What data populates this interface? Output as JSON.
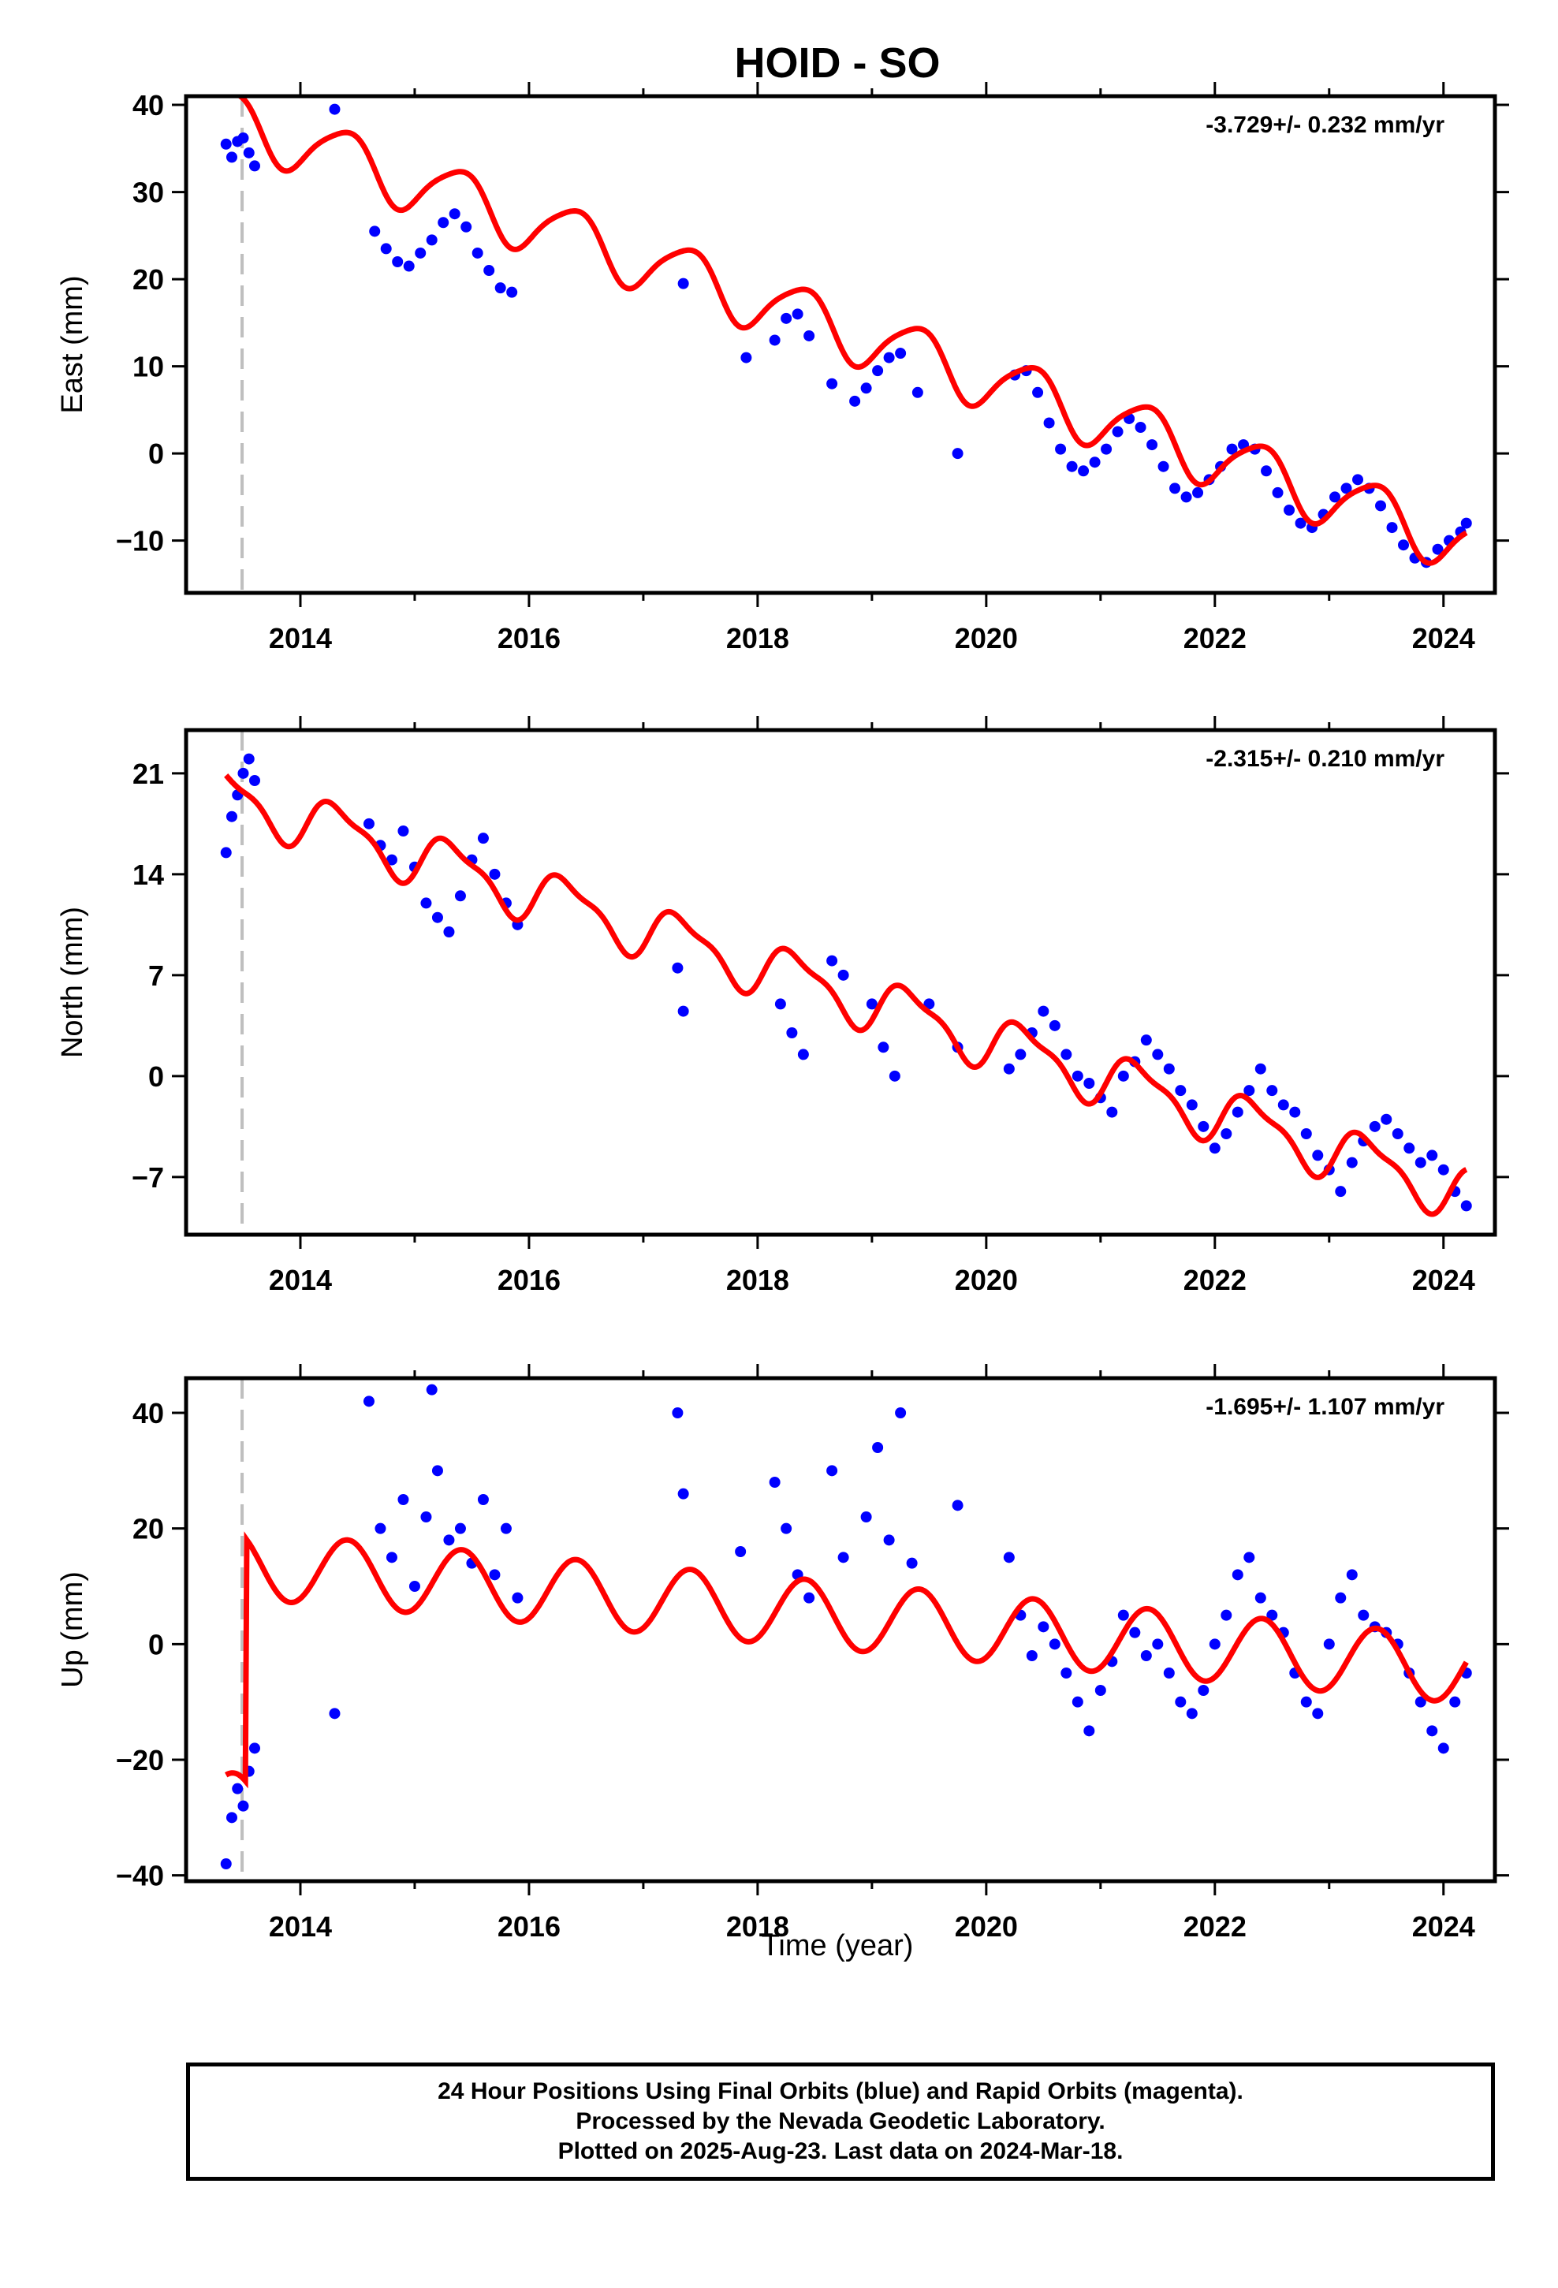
{
  "title": "HOID - SO",
  "xlabel": "Time (year)",
  "x_ticks": [
    "2014",
    "2016",
    "2018",
    "2020",
    "2022",
    "2024"
  ],
  "colors": {
    "final_orbits": "#0000ff",
    "model": "#ff0000",
    "reference_line": "#bfbfbf"
  },
  "chart_data": [
    {
      "type": "scatter",
      "panel": "east",
      "ylabel": "East (mm)",
      "rate": "-3.729+/- 0.232 mm/yr",
      "xlim": [
        2013.0,
        2024.45
      ],
      "ylim": [
        -16,
        41
      ],
      "y_ticks": [
        "40",
        "30",
        "20",
        "10",
        "0",
        "−10"
      ],
      "y_tick_values": [
        40,
        30,
        20,
        10,
        0,
        -10
      ],
      "reference_x": 2013.49,
      "series": [
        {
          "name": "Final Orbits",
          "kind": "points",
          "x": [
            2013.35,
            2013.4,
            2013.45,
            2013.5,
            2013.55,
            2013.6,
            2014.3,
            2014.65,
            2014.75,
            2014.85,
            2014.95,
            2015.05,
            2015.15,
            2015.25,
            2015.35,
            2015.45,
            2015.55,
            2015.65,
            2015.75,
            2015.85,
            2017.35,
            2017.9,
            2018.15,
            2018.25,
            2018.35,
            2018.45,
            2018.65,
            2018.85,
            2018.95,
            2019.05,
            2019.15,
            2019.25,
            2019.4,
            2019.75,
            2020.25,
            2020.35,
            2020.45,
            2020.55,
            2020.65,
            2020.75,
            2020.85,
            2020.95,
            2021.05,
            2021.15,
            2021.25,
            2021.35,
            2021.45,
            2021.55,
            2021.65,
            2021.75,
            2021.85,
            2021.95,
            2022.05,
            2022.15,
            2022.25,
            2022.35,
            2022.45,
            2022.55,
            2022.65,
            2022.75,
            2022.85,
            2022.95,
            2023.05,
            2023.15,
            2023.25,
            2023.35,
            2023.45,
            2023.55,
            2023.65,
            2023.75,
            2023.85,
            2023.95,
            2024.05,
            2024.15,
            2024.2
          ],
          "y": [
            35.5,
            34.0,
            35.8,
            36.2,
            34.5,
            33.0,
            39.5,
            25.5,
            23.5,
            22.0,
            21.5,
            23.0,
            24.5,
            26.5,
            27.5,
            26.0,
            23.0,
            21.0,
            19.0,
            18.5,
            19.5,
            11.0,
            13.0,
            15.5,
            16.0,
            13.5,
            8.0,
            6.0,
            7.5,
            9.5,
            11.0,
            11.5,
            7.0,
            0.0,
            9.0,
            9.5,
            7.0,
            3.5,
            0.5,
            -1.5,
            -2.0,
            -1.0,
            0.5,
            2.5,
            4.0,
            3.0,
            1.0,
            -1.5,
            -4.0,
            -5.0,
            -4.5,
            -3.0,
            -1.5,
            0.5,
            1.0,
            0.5,
            -2.0,
            -4.5,
            -6.5,
            -8.0,
            -8.5,
            -7.0,
            -5.0,
            -4.0,
            -3.0,
            -4.0,
            -6.0,
            -8.5,
            -10.5,
            -12.0,
            -12.5,
            -11.0,
            -10.0,
            -9.0,
            -8.0
          ]
        },
        {
          "name": "Model",
          "kind": "model",
          "intercept": 38.5,
          "trend": -4.5,
          "annual_sin": 2.2,
          "annual_cos": -2.5,
          "semi_sin": 0.4,
          "semi_cos": 0.4,
          "offsets": [],
          "x_range": [
            2013.35,
            2024.2
          ]
        }
      ]
    },
    {
      "type": "scatter",
      "panel": "north",
      "ylabel": "North (mm)",
      "rate": "-2.315+/- 0.210 mm/yr",
      "xlim": [
        2013.0,
        2024.45
      ],
      "ylim": [
        -11,
        24
      ],
      "y_ticks": [
        "21",
        "14",
        "7",
        "0",
        "−7"
      ],
      "y_tick_values": [
        21,
        14,
        7,
        0,
        -7
      ],
      "reference_x": 2013.49,
      "series": [
        {
          "name": "Final Orbits",
          "kind": "points",
          "x": [
            2013.35,
            2013.4,
            2013.45,
            2013.5,
            2013.55,
            2013.6,
            2014.6,
            2014.7,
            2014.8,
            2014.9,
            2015.0,
            2015.1,
            2015.2,
            2015.3,
            2015.4,
            2015.5,
            2015.6,
            2015.7,
            2015.8,
            2015.9,
            2017.3,
            2017.35,
            2018.2,
            2018.3,
            2018.4,
            2018.65,
            2018.75,
            2019.0,
            2019.1,
            2019.2,
            2019.5,
            2019.75,
            2020.2,
            2020.3,
            2020.4,
            2020.5,
            2020.6,
            2020.7,
            2020.8,
            2020.9,
            2021.0,
            2021.1,
            2021.2,
            2021.3,
            2021.4,
            2021.5,
            2021.6,
            2021.7,
            2021.8,
            2021.9,
            2022.0,
            2022.1,
            2022.2,
            2022.3,
            2022.4,
            2022.5,
            2022.6,
            2022.7,
            2022.8,
            2022.9,
            2023.0,
            2023.1,
            2023.2,
            2023.3,
            2023.4,
            2023.5,
            2023.6,
            2023.7,
            2023.8,
            2023.9,
            2024.0,
            2024.1,
            2024.2
          ],
          "y": [
            15.5,
            18.0,
            19.5,
            21.0,
            22.0,
            20.5,
            17.5,
            16.0,
            15.0,
            17.0,
            14.5,
            12.0,
            11.0,
            10.0,
            12.5,
            15.0,
            16.5,
            14.0,
            12.0,
            10.5,
            7.5,
            4.5,
            5.0,
            3.0,
            1.5,
            8.0,
            7.0,
            5.0,
            2.0,
            0.0,
            5.0,
            2.0,
            0.5,
            1.5,
            3.0,
            4.5,
            3.5,
            1.5,
            0.0,
            -0.5,
            -1.5,
            -2.5,
            0.0,
            1.0,
            2.5,
            1.5,
            0.5,
            -1.0,
            -2.0,
            -3.5,
            -5.0,
            -4.0,
            -2.5,
            -1.0,
            0.5,
            -1.0,
            -2.0,
            -2.5,
            -4.0,
            -5.5,
            -6.5,
            -8.0,
            -6.0,
            -4.5,
            -3.5,
            -3.0,
            -4.0,
            -5.0,
            -6.0,
            -5.5,
            -6.5,
            -8.0,
            -9.0
          ]
        },
        {
          "name": "Model",
          "kind": "model",
          "intercept": 19.5,
          "trend": -2.55,
          "annual_sin": 1.5,
          "annual_cos": -0.9,
          "semi_sin": 0.5,
          "semi_cos": -0.3,
          "offsets": [],
          "x_range": [
            2013.35,
            2024.2
          ]
        }
      ]
    },
    {
      "type": "scatter",
      "panel": "up",
      "ylabel": "Up (mm)",
      "rate": "-1.695+/- 1.107 mm/yr",
      "xlim": [
        2013.0,
        2024.45
      ],
      "ylim": [
        -41,
        46
      ],
      "y_ticks": [
        "40",
        "20",
        "0",
        "−20",
        "−40"
      ],
      "y_tick_values": [
        40,
        20,
        0,
        -20,
        -40
      ],
      "reference_x": 2013.49,
      "series": [
        {
          "name": "Final Orbits",
          "kind": "points",
          "x": [
            2013.35,
            2013.4,
            2013.45,
            2013.5,
            2013.55,
            2013.6,
            2014.3,
            2014.6,
            2014.7,
            2014.8,
            2014.9,
            2015.0,
            2015.1,
            2015.15,
            2015.2,
            2015.3,
            2015.4,
            2015.5,
            2015.6,
            2015.7,
            2015.8,
            2015.9,
            2017.3,
            2017.35,
            2017.85,
            2018.15,
            2018.25,
            2018.35,
            2018.45,
            2018.65,
            2018.75,
            2018.95,
            2019.05,
            2019.15,
            2019.25,
            2019.35,
            2019.75,
            2020.2,
            2020.3,
            2020.4,
            2020.5,
            2020.6,
            2020.7,
            2020.8,
            2020.9,
            2021.0,
            2021.1,
            2021.2,
            2021.3,
            2021.4,
            2021.5,
            2021.6,
            2021.7,
            2021.8,
            2021.9,
            2022.0,
            2022.1,
            2022.2,
            2022.3,
            2022.4,
            2022.5,
            2022.6,
            2022.7,
            2022.8,
            2022.9,
            2023.0,
            2023.1,
            2023.2,
            2023.3,
            2023.4,
            2023.5,
            2023.6,
            2023.7,
            2023.8,
            2023.9,
            2024.0,
            2024.1,
            2024.2
          ],
          "y": [
            -38.0,
            -30.0,
            -25.0,
            -28.0,
            -22.0,
            -18.0,
            -12.0,
            42.0,
            20.0,
            15.0,
            25.0,
            10.0,
            22.0,
            44.0,
            30.0,
            18.0,
            20.0,
            14.0,
            25.0,
            12.0,
            20.0,
            8.0,
            40.0,
            26.0,
            16.0,
            28.0,
            20.0,
            12.0,
            8.0,
            30.0,
            15.0,
            22.0,
            34.0,
            18.0,
            40.0,
            14.0,
            24.0,
            15.0,
            5.0,
            -2.0,
            3.0,
            0.0,
            -5.0,
            -10.0,
            -15.0,
            -8.0,
            -3.0,
            5.0,
            2.0,
            -2.0,
            0.0,
            -5.0,
            -10.0,
            -12.0,
            -8.0,
            0.0,
            5.0,
            12.0,
            15.0,
            8.0,
            5.0,
            2.0,
            -5.0,
            -10.0,
            -12.0,
            0.0,
            8.0,
            12.0,
            5.0,
            3.0,
            2.0,
            0.0,
            -5.0,
            -10.0,
            -15.0,
            -18.0,
            -10.0,
            -5.0
          ]
        },
        {
          "name": "Model",
          "kind": "model",
          "intercept": -28.0,
          "trend": -1.7,
          "annual_sin": 3.0,
          "annual_cos": -5.0,
          "semi_sin": 0.0,
          "semi_cos": 0.0,
          "offsets": [
            {
              "x": 2013.52,
              "dy": 42.0
            }
          ],
          "x_range": [
            2013.35,
            2024.2
          ]
        }
      ]
    }
  ],
  "footer": {
    "line1": "24 Hour Positions Using Final Orbits (blue) and Rapid Orbits (magenta).",
    "line2": "Processed by the Nevada Geodetic Laboratory.",
    "line3": "Plotted on 2025-Aug-23. Last data on 2024-Mar-18."
  }
}
